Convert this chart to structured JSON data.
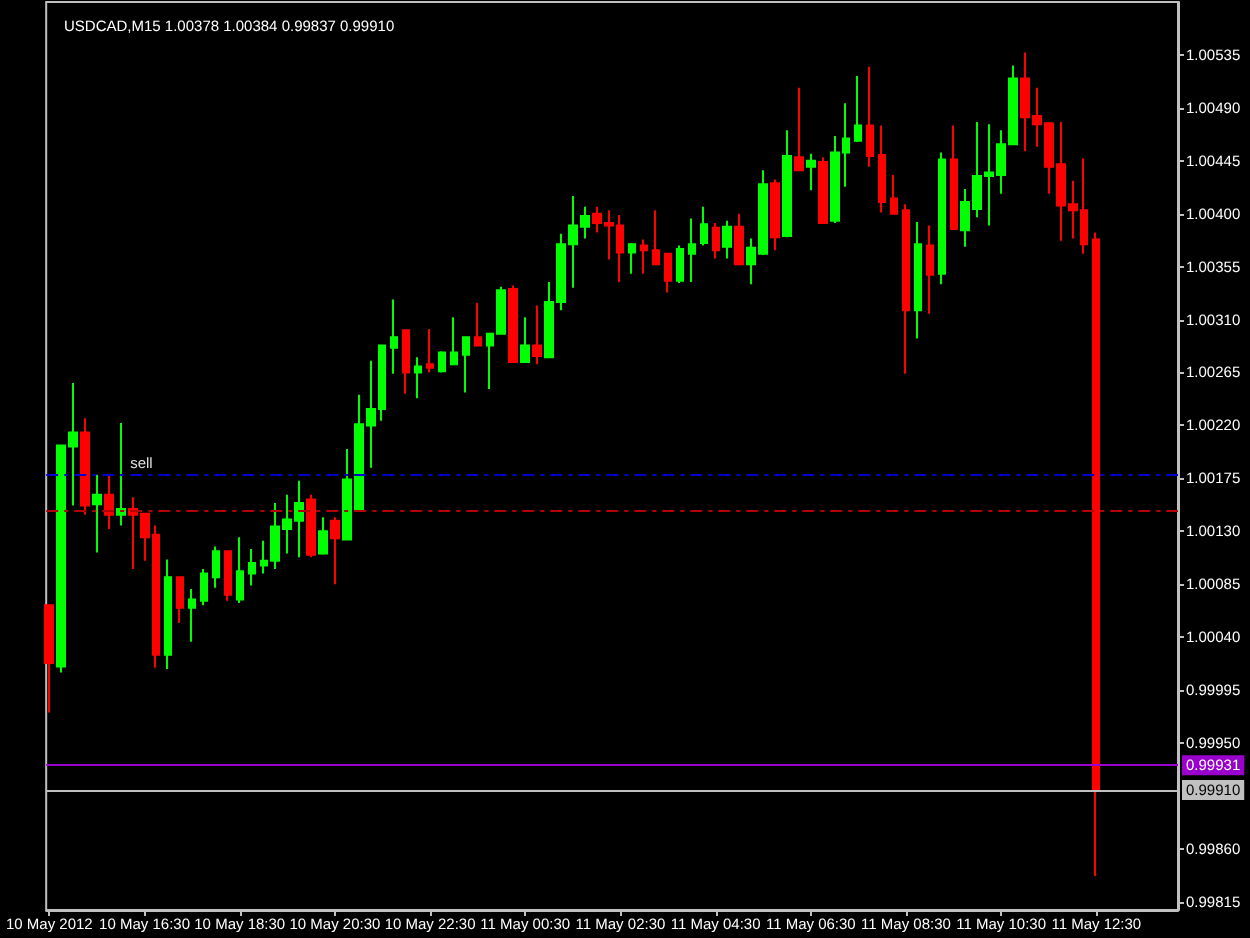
{
  "chart_data": {
    "type": "candlestick",
    "title": "USDCAD,M15 1.00378 1.00384 0.99837 0.99910",
    "x": [
      "2012-05-10T14:30",
      "2012-05-10T14:45",
      "2012-05-10T15:00",
      "2012-05-10T15:15",
      "2012-05-10T15:30",
      "2012-05-10T15:45",
      "2012-05-10T16:00",
      "2012-05-10T16:15",
      "2012-05-10T16:30",
      "2012-05-10T16:45",
      "2012-05-10T17:00",
      "2012-05-10T17:15",
      "2012-05-10T17:30",
      "2012-05-10T17:45",
      "2012-05-10T18:00",
      "2012-05-10T18:15",
      "2012-05-10T18:30",
      "2012-05-10T18:45",
      "2012-05-10T19:00",
      "2012-05-10T19:15",
      "2012-05-10T19:30",
      "2012-05-10T19:45",
      "2012-05-10T20:00",
      "2012-05-10T20:15",
      "2012-05-10T20:30",
      "2012-05-10T20:45",
      "2012-05-10T21:00",
      "2012-05-10T21:15",
      "2012-05-10T21:30",
      "2012-05-10T21:45",
      "2012-05-10T22:00",
      "2012-05-10T22:15",
      "2012-05-10T22:30",
      "2012-05-10T22:45",
      "2012-05-10T23:00",
      "2012-05-10T23:15",
      "2012-05-10T23:30",
      "2012-05-10T23:45",
      "2012-05-11T00:00",
      "2012-05-11T00:15",
      "2012-05-11T00:30",
      "2012-05-11T00:45",
      "2012-05-11T01:00",
      "2012-05-11T01:15",
      "2012-05-11T01:30",
      "2012-05-11T01:45",
      "2012-05-11T02:00",
      "2012-05-11T02:15",
      "2012-05-11T02:30",
      "2012-05-11T02:45",
      "2012-05-11T03:00",
      "2012-05-11T03:15",
      "2012-05-11T03:30",
      "2012-05-11T03:45",
      "2012-05-11T04:00",
      "2012-05-11T04:15",
      "2012-05-11T04:30",
      "2012-05-11T04:45",
      "2012-05-11T05:00",
      "2012-05-11T05:15",
      "2012-05-11T05:30",
      "2012-05-11T05:45",
      "2012-05-11T06:00",
      "2012-05-11T06:15",
      "2012-05-11T06:30",
      "2012-05-11T06:45",
      "2012-05-11T07:00",
      "2012-05-11T07:15",
      "2012-05-11T07:30",
      "2012-05-11T07:45",
      "2012-05-11T08:00",
      "2012-05-11T08:15",
      "2012-05-11T08:30",
      "2012-05-11T08:45",
      "2012-05-11T09:00",
      "2012-05-11T09:15",
      "2012-05-11T09:30",
      "2012-05-11T09:45",
      "2012-05-11T10:00",
      "2012-05-11T10:15",
      "2012-05-11T10:30",
      "2012-05-11T10:45",
      "2012-05-11T11:00",
      "2012-05-11T11:15",
      "2012-05-11T11:30",
      "2012-05-11T11:45",
      "2012-05-11T12:00",
      "2012-05-11T12:15",
      "2012-05-11T12:30"
    ],
    "ohlc": [
      [
        1.00067,
        1.00067,
        0.99976,
        1.00018
      ],
      [
        1.00015,
        1.00203,
        1.0001,
        1.00203
      ],
      [
        1.00202,
        1.00256,
        1.00152,
        1.00214
      ],
      [
        1.00214,
        1.00226,
        1.00144,
        1.00152
      ],
      [
        1.00153,
        1.00178,
        1.00112,
        1.00161
      ],
      [
        1.00161,
        1.00178,
        1.00132,
        1.00144
      ],
      [
        1.00144,
        1.00222,
        1.00135,
        1.00149
      ],
      [
        1.00149,
        1.00159,
        1.00098,
        1.00144
      ],
      [
        1.00145,
        1.00145,
        1.00105,
        1.00125
      ],
      [
        1.00127,
        1.00135,
        1.00014,
        1.00025
      ],
      [
        1.00025,
        1.00106,
        1.00013,
        1.00091
      ],
      [
        1.00091,
        1.00091,
        1.00052,
        1.00065
      ],
      [
        1.00065,
        1.00081,
        1.00036,
        1.00072
      ],
      [
        1.00071,
        1.00098,
        1.00067,
        1.00094
      ],
      [
        1.00091,
        1.00117,
        1.00082,
        1.00113
      ],
      [
        1.00113,
        1.00113,
        1.00071,
        1.00076
      ],
      [
        1.00072,
        1.00125,
        1.00069,
        1.00096
      ],
      [
        1.00094,
        1.00115,
        1.00084,
        1.00103
      ],
      [
        1.00101,
        1.00122,
        1.00094,
        1.00105
      ],
      [
        1.00105,
        1.00154,
        1.00098,
        1.00134
      ],
      [
        1.00132,
        1.00161,
        1.00111,
        1.0014
      ],
      [
        1.00139,
        1.00173,
        1.00108,
        1.00154
      ],
      [
        1.00157,
        1.00161,
        1.00108,
        1.0011
      ],
      [
        1.00111,
        1.00142,
        1.0011,
        1.0013
      ],
      [
        1.00139,
        1.00142,
        1.00085,
        1.00124
      ],
      [
        1.00123,
        1.002,
        1.00123,
        1.00174
      ],
      [
        1.00148,
        1.00246,
        1.00147,
        1.00221
      ],
      [
        1.0022,
        1.00275,
        1.00184,
        1.00234
      ],
      [
        1.00234,
        1.00288,
        1.00224,
        1.00288
      ],
      [
        1.00286,
        1.00327,
        1.00264,
        1.00295
      ],
      [
        1.00301,
        1.00301,
        1.00247,
        1.00265
      ],
      [
        1.00265,
        1.00278,
        1.00243,
        1.0027
      ],
      [
        1.00272,
        1.00302,
        1.00265,
        1.00269
      ],
      [
        1.00266,
        1.00283,
        1.00265,
        1.00282
      ],
      [
        1.00272,
        1.00312,
        1.00272,
        1.00282
      ],
      [
        1.0028,
        1.00295,
        1.00248,
        1.00295
      ],
      [
        1.00295,
        1.00324,
        1.00288,
        1.00288
      ],
      [
        1.00288,
        1.00298,
        1.00251,
        1.00298
      ],
      [
        1.00298,
        1.00338,
        1.00298,
        1.00335
      ],
      [
        1.00336,
        1.00339,
        1.00274,
        1.00274
      ],
      [
        1.00274,
        1.00312,
        1.00274,
        1.00288
      ],
      [
        1.00288,
        1.00322,
        1.00272,
        1.00279
      ],
      [
        1.00278,
        1.00342,
        1.00278,
        1.00325
      ],
      [
        1.00325,
        1.00383,
        1.00318,
        1.00374
      ],
      [
        1.00374,
        1.00415,
        1.00337,
        1.0039
      ],
      [
        1.00389,
        1.00406,
        1.00379,
        1.00398
      ],
      [
        1.004,
        1.00406,
        1.00384,
        1.00392
      ],
      [
        1.00392,
        1.00403,
        1.00361,
        1.0039
      ],
      [
        1.0039,
        1.00399,
        1.00342,
        1.00367
      ],
      [
        1.00367,
        1.00375,
        1.00349,
        1.00374
      ],
      [
        1.00373,
        1.00378,
        1.00349,
        1.00369
      ],
      [
        1.00369,
        1.00403,
        1.00357,
        1.00357
      ],
      [
        1.00366,
        1.00366,
        1.00333,
        1.00343
      ],
      [
        1.00343,
        1.00373,
        1.00341,
        1.0037
      ],
      [
        1.00366,
        1.00396,
        1.00342,
        1.00374
      ],
      [
        1.00375,
        1.00406,
        1.00373,
        1.00391
      ],
      [
        1.00388,
        1.00392,
        1.00362,
        1.00369
      ],
      [
        1.00372,
        1.00394,
        1.00362,
        1.00389
      ],
      [
        1.00389,
        1.004,
        1.00356,
        1.00357
      ],
      [
        1.00357,
        1.00379,
        1.0034,
        1.00371
      ],
      [
        1.00366,
        1.00437,
        1.00365,
        1.00425
      ],
      [
        1.00426,
        1.00429,
        1.00369,
        1.0038
      ],
      [
        1.00381,
        1.00471,
        1.0038,
        1.00449
      ],
      [
        1.00448,
        1.00507,
        1.00436,
        1.00437
      ],
      [
        1.0044,
        1.00451,
        1.0042,
        1.00445
      ],
      [
        1.00444,
        1.00448,
        1.00392,
        1.00392
      ],
      [
        1.00394,
        1.00466,
        1.00392,
        1.00452
      ],
      [
        1.00452,
        1.00494,
        1.00423,
        1.00464
      ],
      [
        1.00462,
        1.00517,
        1.00461,
        1.00475
      ],
      [
        1.00475,
        1.00525,
        1.0044,
        1.00449
      ],
      [
        1.0045,
        1.00475,
        1.00401,
        1.0041
      ],
      [
        1.00413,
        1.00433,
        1.004,
        1.004
      ],
      [
        1.00403,
        1.00408,
        1.00264,
        1.00318
      ],
      [
        1.00318,
        1.00393,
        1.00294,
        1.00374
      ],
      [
        1.00373,
        1.0039,
        1.00315,
        1.00348
      ],
      [
        1.00349,
        1.00452,
        1.0034,
        1.00446
      ],
      [
        1.00446,
        1.00475,
        1.00387,
        1.00387
      ],
      [
        1.00386,
        1.00421,
        1.00372,
        1.0041
      ],
      [
        1.00404,
        1.00478,
        1.00397,
        1.00432
      ],
      [
        1.00432,
        1.00476,
        1.0039,
        1.00435
      ],
      [
        1.00433,
        1.00471,
        1.00417,
        1.00459
      ],
      [
        1.00459,
        1.00526,
        1.00459,
        1.00515
      ],
      [
        1.00515,
        1.00537,
        1.00453,
        1.00482
      ],
      [
        1.00483,
        1.00507,
        1.00457,
        1.00476
      ],
      [
        1.00477,
        1.00477,
        1.00417,
        1.0044
      ],
      [
        1.00442,
        1.00478,
        1.00377,
        1.00407
      ],
      [
        1.00408,
        1.00428,
        1.00379,
        1.00403
      ],
      [
        1.00403,
        1.00447,
        1.00366,
        1.00374
      ],
      [
        1.00378,
        1.00384,
        0.99837,
        0.9991
      ]
    ],
    "colors": [
      "#ff0000",
      "#00ff00",
      "#00ff00",
      "#ff0000",
      "#00ff00",
      "#ff0000",
      "#00ff00",
      "#ff0000",
      "#ff0000",
      "#ff0000",
      "#00ff00",
      "#ff0000",
      "#00ff00",
      "#00ff00",
      "#00ff00",
      "#ff0000",
      "#00ff00",
      "#00ff00",
      "#00ff00",
      "#00ff00",
      "#00ff00",
      "#00ff00",
      "#ff0000",
      "#00ff00",
      "#ff0000",
      "#00ff00",
      "#00ff00",
      "#00ff00",
      "#00ff00",
      "#00ff00",
      "#ff0000",
      "#00ff00",
      "#ff0000",
      "#00ff00",
      "#00ff00",
      "#00ff00",
      "#ff0000",
      "#00ff00",
      "#00ff00",
      "#ff0000",
      "#00ff00",
      "#ff0000",
      "#00ff00",
      "#00ff00",
      "#00ff00",
      "#00ff00",
      "#ff0000",
      "#ff0000",
      "#ff0000",
      "#00ff00",
      "#ff0000",
      "#ff0000",
      "#ff0000",
      "#00ff00",
      "#00ff00",
      "#00ff00",
      "#ff0000",
      "#00ff00",
      "#ff0000",
      "#00ff00",
      "#00ff00",
      "#ff0000",
      "#00ff00",
      "#ff0000",
      "#00ff00",
      "#ff0000",
      "#00ff00",
      "#00ff00",
      "#00ff00",
      "#ff0000",
      "#ff0000",
      "#ff0000",
      "#ff0000",
      "#00ff00",
      "#ff0000",
      "#00ff00",
      "#ff0000",
      "#00ff00",
      "#00ff00",
      "#00ff00",
      "#00ff00",
      "#00ff00",
      "#ff0000",
      "#ff0000",
      "#ff0000",
      "#ff0000",
      "#ff0000",
      "#ff0000",
      "#ff0000"
    ],
    "xlim": [
      "2012-05-10T14:26",
      "2012-05-11T14:13"
    ],
    "xticks": [
      {
        "value": "2012-05-10T14:30",
        "label": "10 May 2012"
      },
      {
        "value": "2012-05-10T16:30",
        "label": "10 May 16:30"
      },
      {
        "value": "2012-05-10T18:30",
        "label": "10 May 18:30"
      },
      {
        "value": "2012-05-10T20:30",
        "label": "10 May 20:30"
      },
      {
        "value": "2012-05-10T22:30",
        "label": "10 May 22:30"
      },
      {
        "value": "2012-05-11T00:30",
        "label": "11 May 00:30"
      },
      {
        "value": "2012-05-11T02:30",
        "label": "11 May 02:30"
      },
      {
        "value": "2012-05-11T04:30",
        "label": "11 May 04:30"
      },
      {
        "value": "2012-05-11T06:30",
        "label": "11 May 06:30"
      },
      {
        "value": "2012-05-11T08:30",
        "label": "11 May 08:30"
      },
      {
        "value": "2012-05-11T10:30",
        "label": "11 May 10:30"
      },
      {
        "value": "2012-05-11T12:30",
        "label": "11 May 12:30"
      }
    ],
    "ylim": [
      0.99808,
      1.0058
    ],
    "yticks": [
      0.99815,
      {
        "value": 0.9986,
        "label": "0.99860"
      },
      {
        "value": 0.9995,
        "label": "0.99950"
      },
      0.99995,
      {
        "value": 1.0004,
        "label": "1.00040"
      },
      1.00085,
      {
        "value": 1.0013,
        "label": "1.00130"
      },
      1.00175,
      {
        "value": 1.0022,
        "label": "1.00220"
      },
      1.00265,
      {
        "value": 1.0031,
        "label": "1.00310"
      },
      1.00355,
      {
        "value": 1.004,
        "label": "1.00400"
      },
      1.00445,
      {
        "value": 1.0049,
        "label": "1.00490"
      },
      1.00535
    ],
    "ref_lines": [
      {
        "axis": "y",
        "value": 1.00178,
        "label": "sell",
        "color": "#0000cc",
        "line_style": "dashed"
      },
      {
        "axis": "y",
        "value": 1.00148,
        "color": "#b40000",
        "line_style": "dashed"
      },
      {
        "axis": "y",
        "value": 0.99931,
        "label": "0.99931",
        "color": "#9900cc"
      },
      {
        "axis": "y",
        "value": 0.9991,
        "label": "0.99910",
        "color": "#c0c0c0"
      }
    ]
  }
}
